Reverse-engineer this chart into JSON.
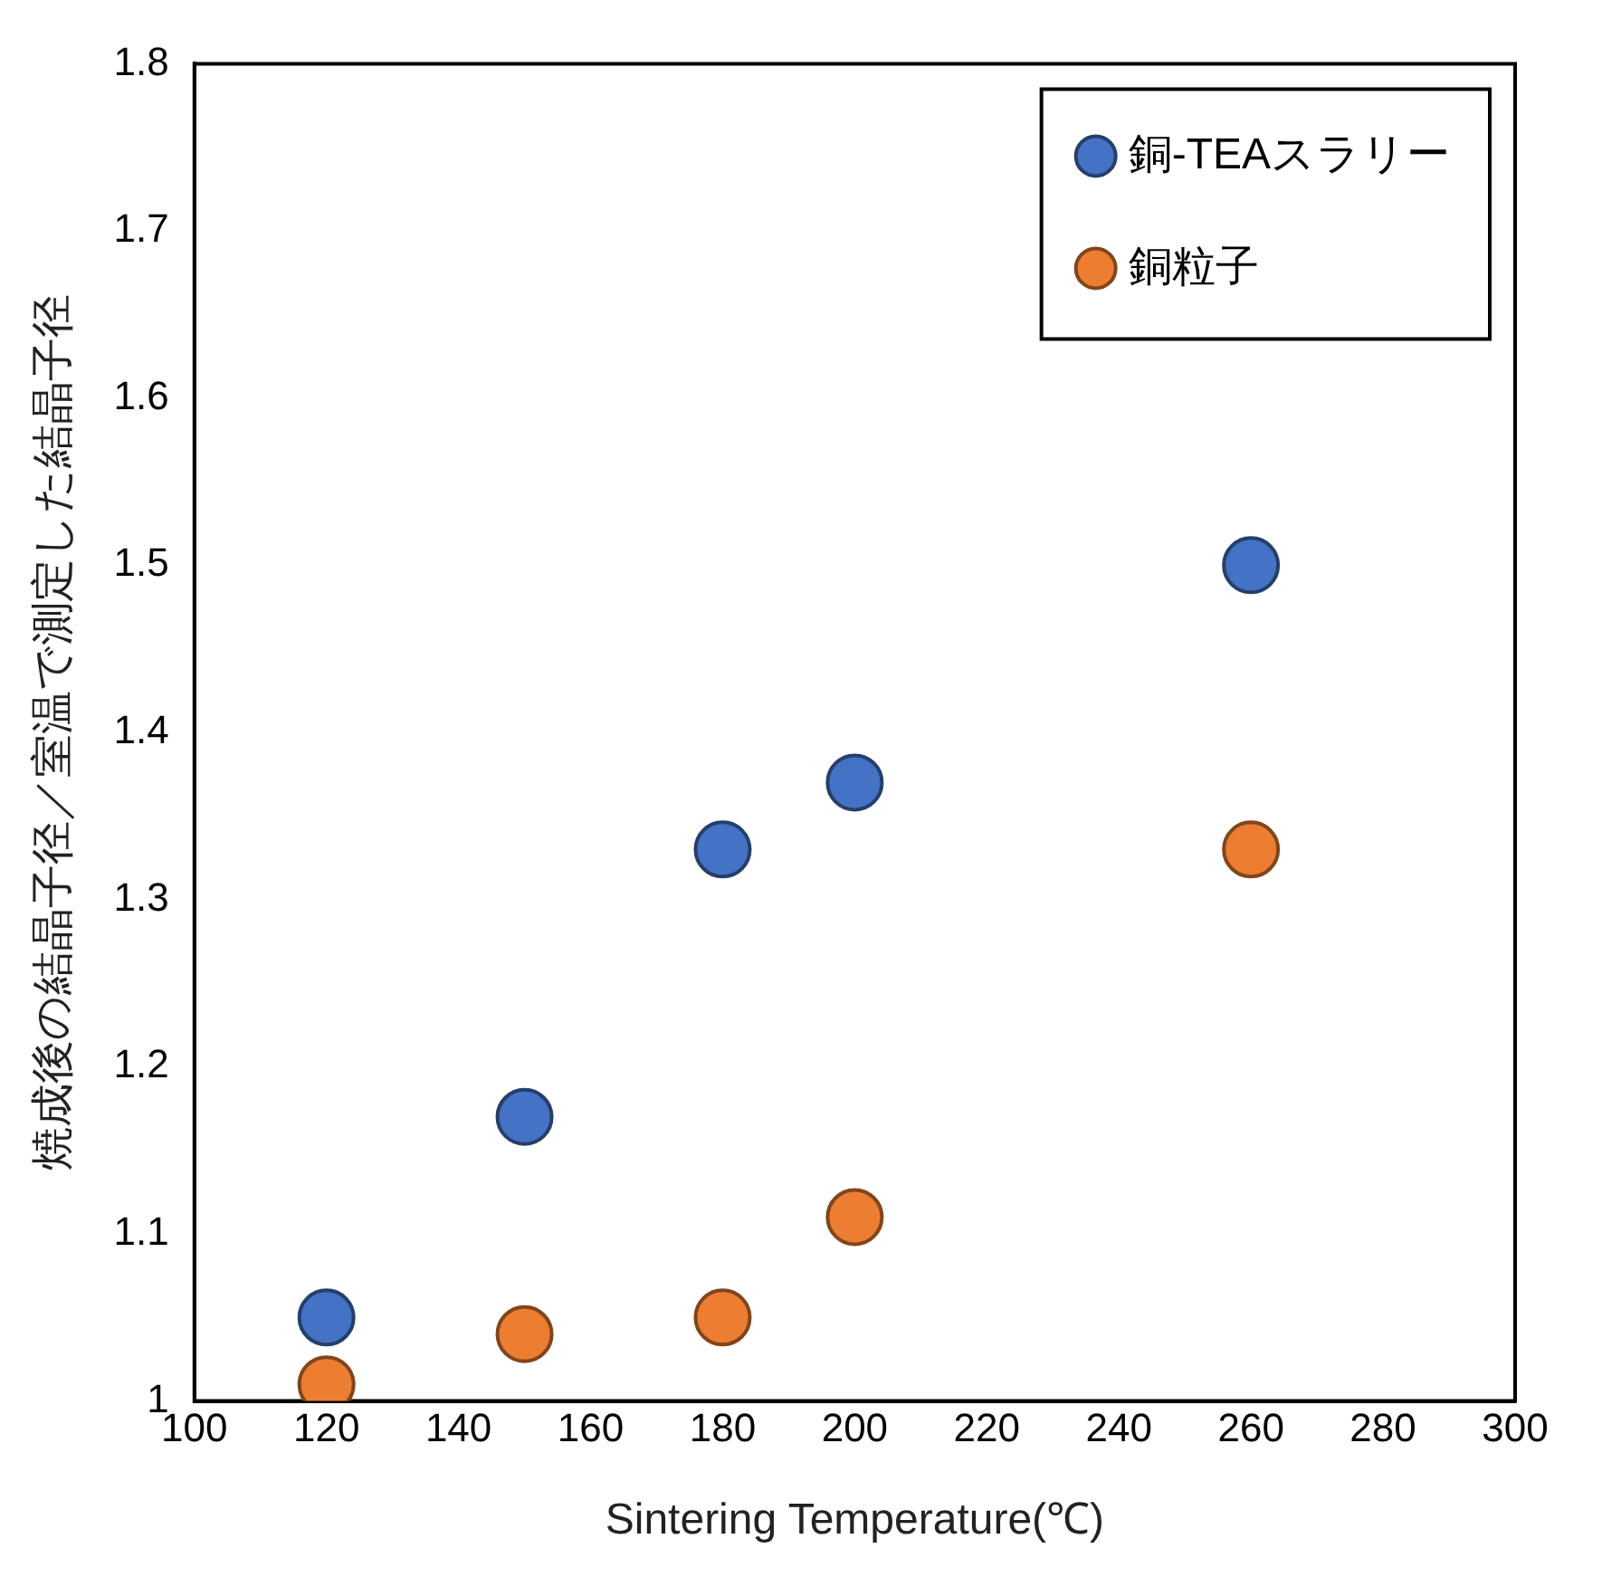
{
  "chart_data": {
    "type": "scatter",
    "xlabel": "Sintering Temperature(℃)",
    "ylabel": "焼成後の結晶子径／室温で測定した結晶子径",
    "x": [
      120,
      150,
      180,
      200,
      260
    ],
    "series": [
      {
        "name": "銅-TEAスラリー",
        "color": "#4472c4",
        "values": [
          1.05,
          1.17,
          1.33,
          1.37,
          1.5
        ]
      },
      {
        "name": "銅粒子",
        "color": "#ed7d31",
        "values": [
          1.01,
          1.04,
          1.05,
          1.11,
          1.33
        ]
      }
    ],
    "xlim": [
      100,
      300
    ],
    "xticks": [
      100,
      120,
      140,
      160,
      180,
      200,
      220,
      240,
      260,
      280,
      300
    ],
    "ylim": [
      1,
      1.8
    ],
    "yticks": [
      1,
      1.1,
      1.2,
      1.3,
      1.4,
      1.5,
      1.6,
      1.7,
      1.8
    ],
    "grid": false,
    "legend": "top right",
    "marker": "circle"
  }
}
